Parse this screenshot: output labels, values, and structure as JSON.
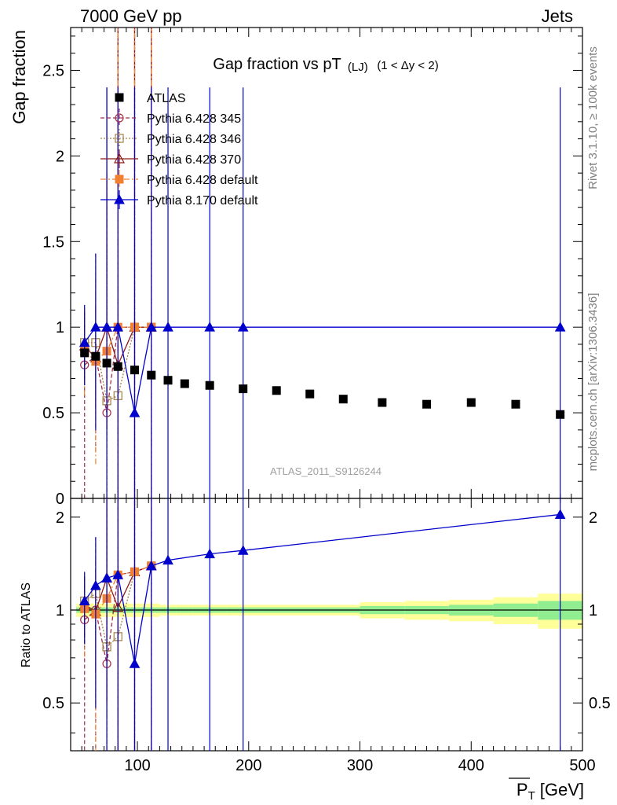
{
  "header": {
    "left": "7000 GeV pp",
    "right": "Jets"
  },
  "side_text": {
    "rivet": "Rivet 3.1.10, ≥ 100k events",
    "mcplots": "mcplots.cern.ch [arXiv:1306.3436]"
  },
  "watermark": "ATLAS_2011_S9126244",
  "colors": {
    "atlas": "#000000",
    "p345": "#a0304a",
    "p346": "#a08048",
    "p370": "#8c1a1a",
    "p6def": "#f08030",
    "p8def": "#0000cc",
    "band_inner": "#90ee90",
    "band_outer": "#ffff99"
  },
  "chart_data": [
    {
      "type": "scatter",
      "title": "Gap fraction vs pT",
      "title_sub": "(LJ)",
      "title_range": "(1 < Δy < 2)",
      "xlabel": "P_T [GeV]",
      "xlabel_main": "P",
      "xlabel_sub": "T",
      "xlabel_unit": "[GeV]",
      "ylabel": "Gap fraction",
      "xlim": [
        40,
        500
      ],
      "ylim": [
        0,
        2.75
      ],
      "x_ticks": [
        100,
        200,
        300,
        400,
        500
      ],
      "y_ticks": [
        0,
        0.5,
        1,
        1.5,
        2,
        2.5
      ],
      "y_tick_labels": [
        "0",
        "0.5",
        "1",
        "1.5",
        "2",
        "2.5"
      ],
      "legend_position": "top-left",
      "series": [
        {
          "name": "ATLAS",
          "key": "atlas",
          "marker": "square-filled",
          "x": [
            52.5,
            62.5,
            72.5,
            82.5,
            97.5,
            112.5,
            127.5,
            142.5,
            165,
            195,
            225,
            255,
            285,
            320,
            360,
            400,
            440,
            480
          ],
          "y": [
            0.85,
            0.83,
            0.79,
            0.77,
            0.75,
            0.72,
            0.69,
            0.67,
            0.66,
            0.64,
            0.63,
            0.61,
            0.58,
            0.56,
            0.55,
            0.56,
            0.55,
            0.49
          ]
        },
        {
          "name": "Pythia 6.428 345",
          "key": "p345",
          "marker": "circle-open",
          "line": "dashed",
          "x": [
            52.5,
            62.5,
            72.5,
            82.5,
            97.5,
            112.5
          ],
          "y": [
            0.78,
            0.83,
            0.5,
            1.0,
            1.0,
            1.0
          ],
          "err_lo": [
            0.78,
            0.56,
            0.5,
            1.0,
            1.0,
            1.0
          ],
          "err_hi": [
            0.32,
            0.6,
            1.4,
            2.4,
            2.4,
            2.4
          ]
        },
        {
          "name": "Pythia 6.428 346",
          "key": "p346",
          "marker": "square-open",
          "line": "dotted",
          "x": [
            52.5,
            62.5,
            72.5,
            82.5,
            97.5,
            112.5
          ],
          "y": [
            0.91,
            0.91,
            0.57,
            0.6,
            1.0,
            1.0
          ],
          "err_lo": [
            0.2,
            0.3,
            0.57,
            0.6,
            1.0,
            1.0
          ],
          "err_hi": [
            0.2,
            0.3,
            0.9,
            1.8,
            2.4,
            2.4
          ]
        },
        {
          "name": "Pythia 6.428 370",
          "key": "p370",
          "marker": "triangle-open",
          "line": "solid",
          "x": [
            52.5,
            62.5,
            72.5,
            82.5,
            97.5,
            112.5
          ],
          "y": [
            0.89,
            0.82,
            1.0,
            0.78,
            1.0,
            1.0
          ],
          "err_lo": [
            0.2,
            0.3,
            0.6,
            0.78,
            1.0,
            1.0
          ],
          "err_hi": [
            0.2,
            0.3,
            1.4,
            2.4,
            2.4,
            2.4
          ]
        },
        {
          "name": "Pythia 6.428 default",
          "key": "p6def",
          "marker": "square-filled",
          "line": "dashdot",
          "x": [
            52.5,
            62.5,
            72.5,
            82.5,
            97.5,
            112.5
          ],
          "y": [
            0.86,
            0.8,
            0.86,
            1.0,
            1.0,
            1.0
          ],
          "err_lo": [
            0.26,
            0.6,
            0.5,
            1.0,
            1.0,
            1.0
          ],
          "err_hi": [
            0.26,
            0.5,
            1.0,
            2.4,
            2.4,
            2.4
          ]
        },
        {
          "name": "Pythia 8.170 default",
          "key": "p8def",
          "marker": "triangle-filled",
          "line": "solid",
          "x": [
            52.5,
            62.5,
            72.5,
            82.5,
            97.5,
            112.5,
            127.5,
            165,
            195,
            480
          ],
          "y": [
            0.91,
            1.0,
            1.0,
            1.0,
            0.5,
            1.0,
            1.0,
            1.0,
            1.0,
            1.0
          ],
          "err_lo": [
            0.25,
            0.6,
            1.0,
            1.0,
            0.5,
            1.0,
            1.0,
            1.0,
            1.0,
            1.0
          ],
          "err_hi": [
            0.22,
            0.43,
            1.4,
            1.4,
            1.9,
            1.4,
            1.4,
            1.4,
            1.4,
            1.4
          ]
        }
      ]
    },
    {
      "type": "scatter",
      "ylabel": "Ratio to ATLAS",
      "xlim": [
        40,
        500
      ],
      "ylim": [
        0.35,
        2.3
      ],
      "x_ticks": [
        100,
        200,
        300,
        400,
        500
      ],
      "x_tick_labels": [
        "100",
        "200",
        "300",
        "400",
        "500"
      ],
      "y_ticks": [
        0.5,
        1,
        2
      ],
      "y_tick_labels": [
        "0.5",
        "1",
        "2"
      ],
      "reference_band": {
        "x_edges": [
          45,
          60,
          70,
          80,
          90,
          105,
          120,
          135,
          150,
          180,
          210,
          240,
          270,
          300,
          340,
          380,
          420,
          460,
          500
        ],
        "inner_half_width": [
          0.02,
          0.02,
          0.02,
          0.02,
          0.02,
          0.02,
          0.02,
          0.02,
          0.02,
          0.02,
          0.02,
          0.02,
          0.02,
          0.03,
          0.03,
          0.04,
          0.05,
          0.07
        ],
        "outer_half_width": [
          0.05,
          0.05,
          0.05,
          0.05,
          0.05,
          0.05,
          0.04,
          0.04,
          0.04,
          0.04,
          0.04,
          0.04,
          0.04,
          0.06,
          0.07,
          0.08,
          0.1,
          0.13
        ]
      },
      "series": [
        {
          "key": "p345",
          "x": [
            52.5,
            62.5,
            72.5,
            82.5,
            97.5,
            112.5
          ],
          "y": [
            0.93,
            1.0,
            0.67,
            1.3,
            1.33,
            1.39
          ]
        },
        {
          "key": "p346",
          "x": [
            52.5,
            62.5,
            72.5,
            82.5,
            97.5,
            112.5
          ],
          "y": [
            1.07,
            1.13,
            0.76,
            0.82,
            1.33,
            1.39
          ]
        },
        {
          "key": "p370",
          "x": [
            52.5,
            62.5,
            72.5,
            82.5,
            97.5,
            112.5
          ],
          "y": [
            1.04,
            0.99,
            1.27,
            1.02,
            1.33,
            1.39
          ]
        },
        {
          "key": "p6def",
          "x": [
            52.5,
            62.5,
            72.5,
            82.5,
            97.5,
            112.5
          ],
          "y": [
            1.01,
            0.97,
            1.09,
            1.3,
            1.33,
            1.39
          ]
        },
        {
          "key": "p8def",
          "x": [
            52.5,
            62.5,
            72.5,
            82.5,
            97.5,
            112.5,
            127.5,
            165,
            195,
            480
          ],
          "y": [
            1.07,
            1.2,
            1.27,
            1.3,
            0.67,
            1.39,
            1.45,
            1.52,
            1.56,
            2.04
          ]
        }
      ]
    }
  ]
}
